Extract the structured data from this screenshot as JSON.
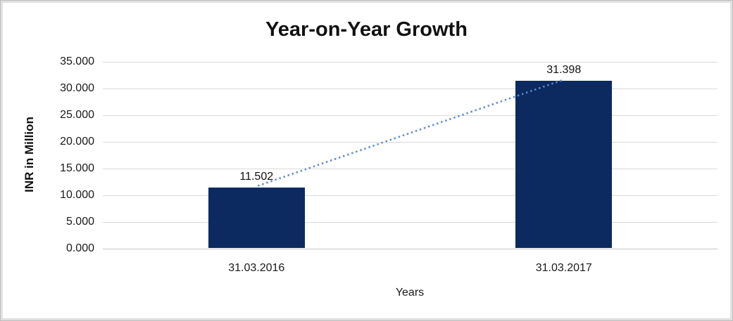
{
  "chart_data": {
    "type": "bar",
    "title": "Year-on-Year Growth",
    "xlabel": "Years",
    "ylabel": "INR in Million",
    "categories": [
      "31.03.2016",
      "31.03.2017"
    ],
    "values": [
      11.502,
      31.398
    ],
    "data_labels": [
      "11.502",
      "31.398"
    ],
    "yticks": [
      {
        "value": 0,
        "label": "0.000"
      },
      {
        "value": 5,
        "label": "5.000"
      },
      {
        "value": 10,
        "label": "10.000"
      },
      {
        "value": 15,
        "label": "15.000"
      },
      {
        "value": 20,
        "label": "20.000"
      },
      {
        "value": 25,
        "label": "25.000"
      },
      {
        "value": 30,
        "label": "30.000"
      },
      {
        "value": 35,
        "label": "35.000"
      }
    ],
    "ylim": [
      0,
      35
    ],
    "grid": true,
    "legend": "none",
    "colors": {
      "bar": "#0c2a60",
      "trendline": "#5b8bd0",
      "gridline": "#d9d9d9",
      "text": "#111111"
    },
    "trendline": {
      "style": "dotted",
      "connects": "bar tops"
    }
  }
}
